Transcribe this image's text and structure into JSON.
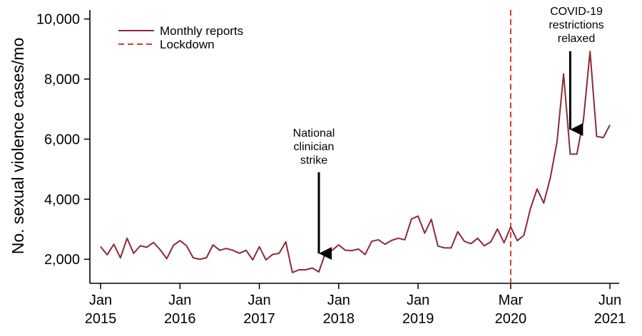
{
  "chart_data": {
    "type": "line",
    "ylabel": "No. sexual violence cases/mo",
    "ylim": [
      1200,
      10300
    ],
    "y_ticks": [
      {
        "value": 2000,
        "label": "2,000"
      },
      {
        "value": 4000,
        "label": "4,000"
      },
      {
        "value": 6000,
        "label": "6,000"
      },
      {
        "value": 8000,
        "label": "8,000"
      },
      {
        "value": 10000,
        "label": "10,000"
      }
    ],
    "x_start": "2015-01",
    "x_end": "2021-06",
    "x_ticks": [
      {
        "date": "2015-01",
        "line1": "Jan",
        "line2": "2015"
      },
      {
        "date": "2016-01",
        "line1": "Jan",
        "line2": "2016"
      },
      {
        "date": "2017-01",
        "line1": "Jan",
        "line2": "2017"
      },
      {
        "date": "2018-01",
        "line1": "Jan",
        "line2": "2018"
      },
      {
        "date": "2019-01",
        "line1": "Jan",
        "line2": "2019"
      },
      {
        "date": "2020-03",
        "line1": "Mar",
        "line2": "2020"
      },
      {
        "date": "2021-06",
        "line1": "Jun",
        "line2": "2021"
      }
    ],
    "legend": {
      "position": "top-left",
      "items": [
        {
          "label": "Monthly reports",
          "style": "solid"
        },
        {
          "label": "Lockdown",
          "style": "dashed"
        }
      ]
    },
    "lockdown_date": "2020-03",
    "series": [
      {
        "name": "Monthly reports",
        "color": "#8b2a35",
        "x": [
          "2015-01",
          "2015-02",
          "2015-03",
          "2015-04",
          "2015-05",
          "2015-06",
          "2015-07",
          "2015-08",
          "2015-09",
          "2015-10",
          "2015-11",
          "2015-12",
          "2016-01",
          "2016-02",
          "2016-03",
          "2016-04",
          "2016-05",
          "2016-06",
          "2016-07",
          "2016-08",
          "2016-09",
          "2016-10",
          "2016-11",
          "2016-12",
          "2017-01",
          "2017-02",
          "2017-03",
          "2017-04",
          "2017-05",
          "2017-06",
          "2017-07",
          "2017-08",
          "2017-09",
          "2017-10",
          "2017-11",
          "2017-12",
          "2018-01",
          "2018-02",
          "2018-03",
          "2018-04",
          "2018-05",
          "2018-06",
          "2018-07",
          "2018-08",
          "2018-09",
          "2018-10",
          "2018-11",
          "2018-12",
          "2019-01",
          "2019-02",
          "2019-03",
          "2019-04",
          "2019-05",
          "2019-06",
          "2019-07",
          "2019-08",
          "2019-09",
          "2019-10",
          "2019-11",
          "2019-12",
          "2020-01",
          "2020-02",
          "2020-03",
          "2020-04",
          "2020-05",
          "2020-06",
          "2020-07",
          "2020-08",
          "2020-09",
          "2020-10",
          "2020-11",
          "2020-12",
          "2021-01",
          "2021-02",
          "2021-03",
          "2021-04",
          "2021-05",
          "2021-06"
        ],
        "y": [
          2420,
          2150,
          2500,
          2050,
          2700,
          2200,
          2450,
          2400,
          2560,
          2320,
          2020,
          2460,
          2620,
          2450,
          2050,
          2000,
          2050,
          2480,
          2300,
          2360,
          2300,
          2200,
          2300,
          1980,
          2420,
          1980,
          2160,
          2200,
          2580,
          1560,
          1650,
          1650,
          1710,
          1580,
          2220,
          2300,
          2480,
          2300,
          2290,
          2340,
          2160,
          2600,
          2650,
          2500,
          2630,
          2700,
          2650,
          3340,
          3440,
          2870,
          3330,
          2440,
          2380,
          2380,
          2920,
          2600,
          2520,
          2700,
          2450,
          2580,
          3010,
          2550,
          3080,
          2620,
          2800,
          3700,
          4340,
          3870,
          4720,
          5900,
          8170,
          5500,
          5500,
          6640,
          8920,
          6090,
          6050,
          6470
        ]
      }
    ],
    "annotations": [
      {
        "lines": [
          "National",
          "clinician",
          "strike"
        ],
        "arrow_date": "2017-10"
      },
      {
        "lines": [
          "COVID-19",
          "restrictions",
          "relaxed"
        ],
        "arrow_date": "2020-12"
      }
    ]
  }
}
